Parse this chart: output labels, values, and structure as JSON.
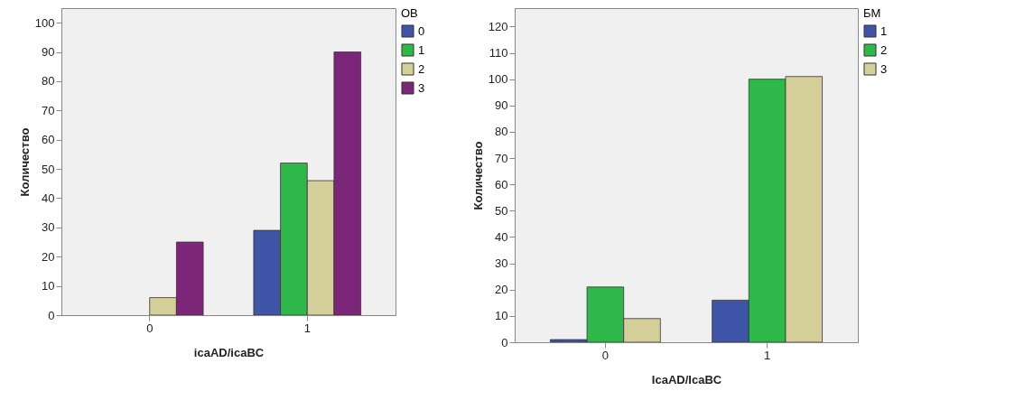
{
  "chart_data": [
    {
      "type": "bar",
      "xlabel": "icaAD/icaBC",
      "ylabel": "Количество",
      "legend_title": "ОВ",
      "categories": [
        "0",
        "1"
      ],
      "series": [
        {
          "name": "0",
          "color": "#3f55a8",
          "values": [
            null,
            29
          ]
        },
        {
          "name": "1",
          "color": "#2fb84a",
          "values": [
            null,
            52
          ]
        },
        {
          "name": "2",
          "color": "#d4cf98",
          "values": [
            6,
            46
          ]
        },
        {
          "name": "3",
          "color": "#7b2678",
          "values": [
            25,
            90
          ]
        }
      ],
      "ylim": [
        0,
        105
      ],
      "yticks": [
        0,
        10,
        20,
        30,
        40,
        50,
        60,
        70,
        80,
        90,
        100
      ],
      "grid": false,
      "legend": "top right"
    },
    {
      "type": "bar",
      "xlabel": "IcaAD/IcaBC",
      "ylabel": "Количество",
      "legend_title": "БМ",
      "categories": [
        "0",
        "1"
      ],
      "series": [
        {
          "name": "1",
          "color": "#3f55a8",
          "values": [
            1,
            16
          ]
        },
        {
          "name": "2",
          "color": "#2fb84a",
          "values": [
            21,
            100
          ]
        },
        {
          "name": "3",
          "color": "#d4cf98",
          "values": [
            9,
            101
          ]
        }
      ],
      "ylim": [
        0,
        127
      ],
      "yticks": [
        0,
        10,
        20,
        30,
        40,
        50,
        60,
        70,
        80,
        90,
        100,
        110,
        120
      ],
      "grid": false,
      "legend": "top right"
    }
  ]
}
